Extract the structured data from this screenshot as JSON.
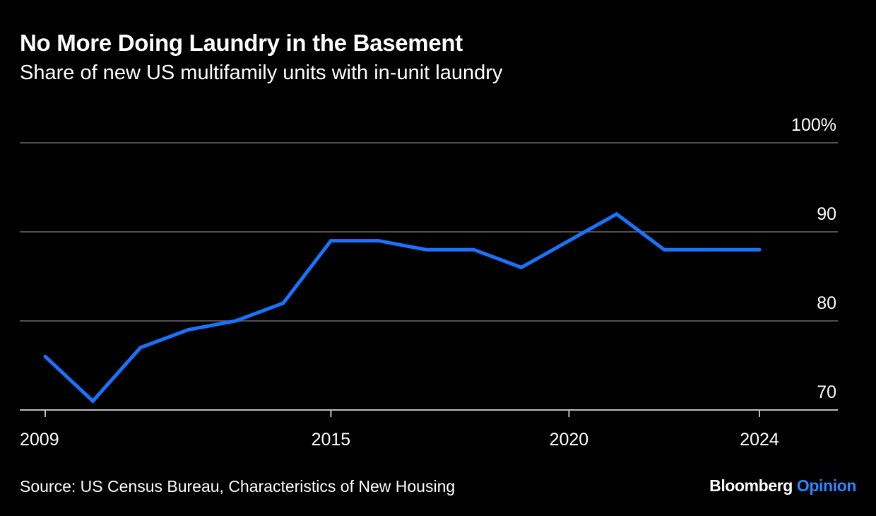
{
  "header": {
    "title": "No More Doing Laundry in the Basement",
    "subtitle": "Share of new US multifamily units with in-unit laundry"
  },
  "footer": {
    "source": "Source: US Census Bureau, Characteristics of New Housing",
    "brand_main": "Bloomberg",
    "brand_accent": "Opinion"
  },
  "colors": {
    "background": "#000000",
    "line": "#1a73ff",
    "gridline": "#6b6b6b",
    "text": "#ffffff",
    "brand_accent": "#2e86ff"
  },
  "chart_data": {
    "type": "line",
    "title": "No More Doing Laundry in the Basement",
    "subtitle": "Share of new US multifamily units with in-unit laundry",
    "xlabel": "",
    "ylabel": "",
    "x": [
      2009,
      2010,
      2011,
      2012,
      2013,
      2014,
      2015,
      2016,
      2017,
      2018,
      2019,
      2020,
      2021,
      2022,
      2023,
      2024
    ],
    "series": [
      {
        "values": [
          76,
          71,
          77,
          79,
          80,
          82,
          89,
          89,
          88,
          88,
          86,
          89,
          92,
          88,
          88,
          88
        ]
      }
    ],
    "xlim": [
      2009,
      2024
    ],
    "ylim": [
      70,
      100
    ],
    "x_ticks": [
      2009,
      2015,
      2020,
      2024
    ],
    "x_tick_labels": [
      "2009",
      "2015",
      "2020",
      "2024"
    ],
    "y_ticks": [
      70,
      80,
      90,
      100
    ],
    "y_tick_labels": [
      "70",
      "80",
      "90",
      "100%"
    ],
    "y_axis_side": "right",
    "grid": "horizontal",
    "legend": "none"
  }
}
